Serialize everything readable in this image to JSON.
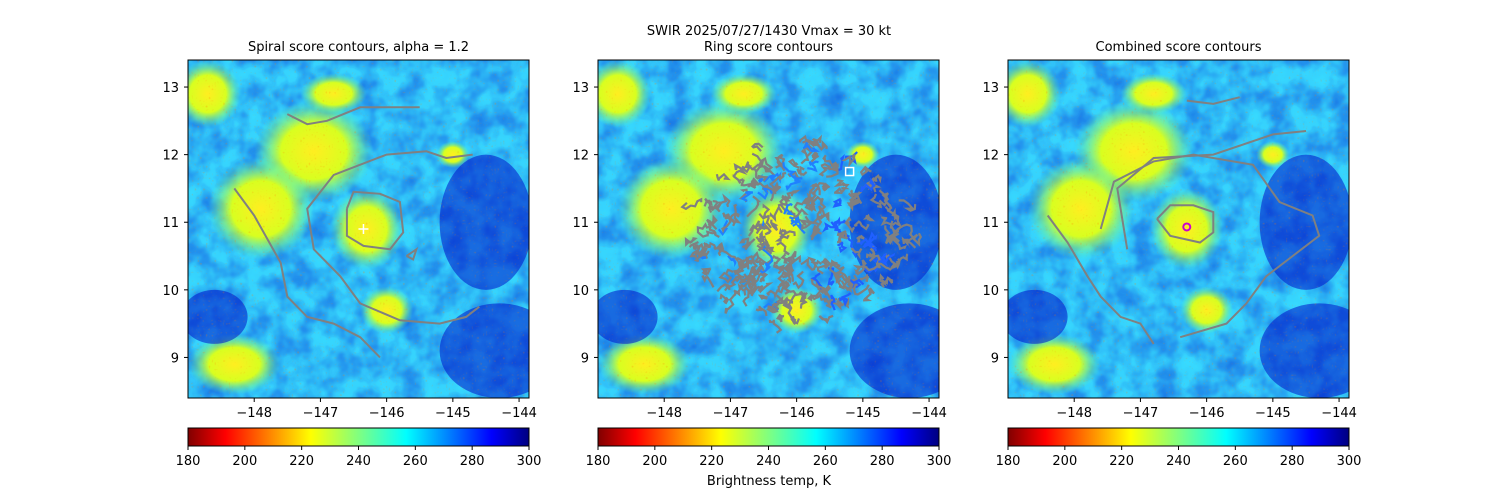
{
  "suptitle_line1": "SWIR  2025/07/27/1430    Vmax = 30 kt",
  "panels": [
    {
      "title": "Spiral score contours, alpha =  1.2",
      "marker": "plus"
    },
    {
      "title": "Ring score contours",
      "marker": "square"
    },
    {
      "title": "Combined score contours",
      "marker": "circle"
    }
  ],
  "colorbar": {
    "label": "Brightness temp, K",
    "ticks": [
      "180",
      "200",
      "220",
      "240",
      "260",
      "280",
      "300"
    ],
    "colormap": "jet_r",
    "range": [
      180,
      300
    ]
  },
  "colors": {
    "contour": "#808080",
    "marker_plus": "#ffffff",
    "marker_square": "#ffffff",
    "marker_circle": "#cc00cc"
  },
  "chart_data": [
    {
      "type": "heatmap",
      "title": "Spiral score contours, alpha =  1.2",
      "xlim": [
        -149.0,
        -143.85
      ],
      "ylim": [
        8.4,
        13.4
      ],
      "xticks": [
        "−148",
        "−147",
        "−146",
        "−145",
        "−144"
      ],
      "yticks": [
        "9",
        "10",
        "11",
        "12",
        "13"
      ],
      "center_marker": {
        "x": -146.35,
        "y": 10.9
      }
    },
    {
      "type": "heatmap",
      "title": "Ring score contours",
      "xlim": [
        -149.0,
        -143.85
      ],
      "ylim": [
        8.4,
        13.4
      ],
      "xticks": [
        "−148",
        "−147",
        "−146",
        "−145",
        "−144"
      ],
      "yticks": [
        "9",
        "10",
        "11",
        "12",
        "13"
      ],
      "center_marker": {
        "x": -145.2,
        "y": 11.75
      }
    },
    {
      "type": "heatmap",
      "title": "Combined score contours",
      "xlim": [
        -149.0,
        -143.85
      ],
      "ylim": [
        8.4,
        13.4
      ],
      "xticks": [
        "−148",
        "−147",
        "−146",
        "−145",
        "−144"
      ],
      "yticks": [
        "9",
        "10",
        "11",
        "12",
        "13"
      ],
      "center_marker": {
        "x": -146.3,
        "y": 10.93
      }
    }
  ]
}
